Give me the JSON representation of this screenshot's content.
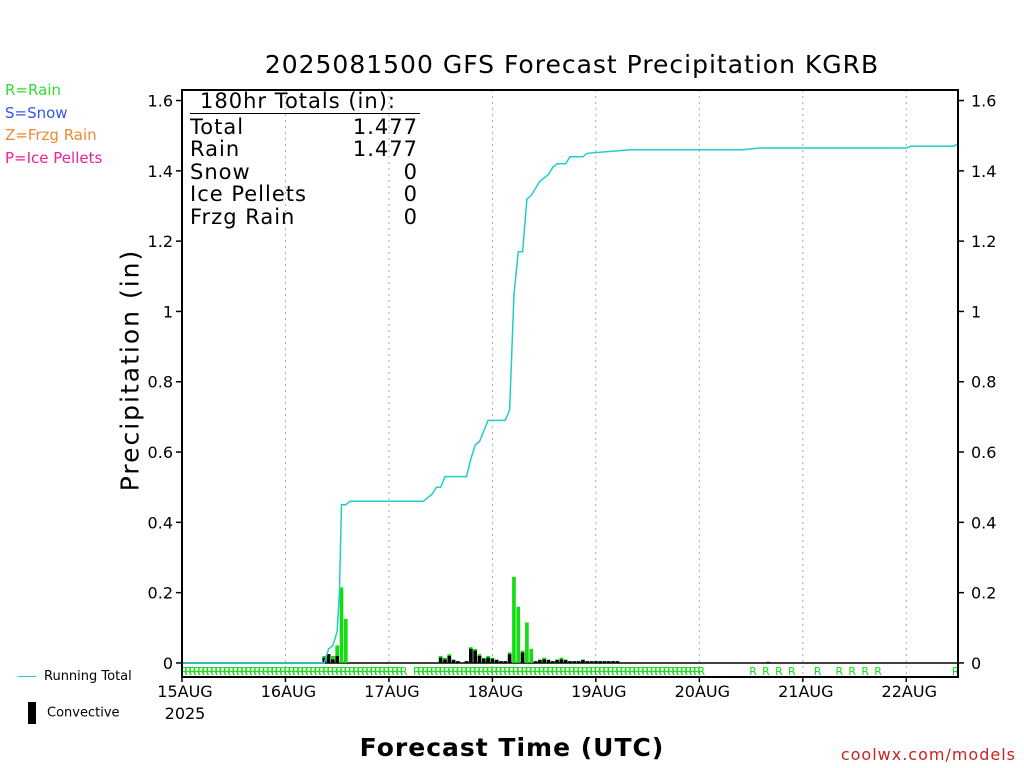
{
  "title": "2025081500 GFS Forecast Precipitation KGRB",
  "credit": "coolwx.com/models",
  "type_legend": [
    {
      "code": "R=Rain",
      "color": "#33dd33"
    },
    {
      "code": "S=Snow",
      "color": "#3355ee"
    },
    {
      "code": "Z=Frzg Rain",
      "color": "#ee8833"
    },
    {
      "code": "P=Ice Pellets",
      "color": "#ee2299"
    }
  ],
  "totals": {
    "header": "180hr Totals (in):",
    "rows": [
      {
        "label": "Total",
        "value": "1.477"
      },
      {
        "label": "Rain",
        "value": "1.477"
      },
      {
        "label": "Snow",
        "value": "0"
      },
      {
        "label": "Ice Pellets",
        "value": "0"
      },
      {
        "label": "Frzg Rain",
        "value": "0"
      }
    ]
  },
  "series_legend": {
    "running_total": "Running Total",
    "convective": "Convective"
  },
  "colors": {
    "running_total": "#22cccc",
    "rain_bar": "#11dd11",
    "convective_bar": "#000000",
    "grid": "#aaaaaa"
  },
  "chart_data": {
    "type": "bar",
    "title": "2025081500 GFS Forecast Precipitation KGRB",
    "xlabel": "Forecast Time (UTC)",
    "ylabel": "Precipitation (in)",
    "x_unit": "hours from 2025-08-15 00Z",
    "xlim": [
      0,
      180
    ],
    "ylim": [
      -0.04,
      1.63
    ],
    "yticks": [
      0,
      0.2,
      0.4,
      0.6,
      0.8,
      1,
      1.2,
      1.4,
      1.6
    ],
    "ytick_labels": [
      "0",
      "0.2",
      "0.4",
      "0.6",
      "0.8",
      "1",
      "1.2",
      "1.4",
      "1.6"
    ],
    "xticks": [
      {
        "x": 0,
        "label": "15AUG",
        "sublabel": "2025"
      },
      {
        "x": 24,
        "label": "16AUG"
      },
      {
        "x": 48,
        "label": "17AUG"
      },
      {
        "x": 72,
        "label": "18AUG"
      },
      {
        "x": 96,
        "label": "19AUG"
      },
      {
        "x": 120,
        "label": "20AUG"
      },
      {
        "x": 144,
        "label": "21AUG"
      },
      {
        "x": 168,
        "label": "22AUG"
      }
    ],
    "grid": "vertical dotted at day boundaries",
    "running_total": [
      [
        0,
        0
      ],
      [
        33,
        0
      ],
      [
        34,
        0.04
      ],
      [
        35,
        0.05
      ],
      [
        36,
        0.09
      ],
      [
        36.5,
        0.2
      ],
      [
        37,
        0.45
      ],
      [
        38,
        0.45
      ],
      [
        39,
        0.46
      ],
      [
        40,
        0.46
      ],
      [
        56,
        0.46
      ],
      [
        58,
        0.48
      ],
      [
        59,
        0.5
      ],
      [
        60,
        0.5
      ],
      [
        61,
        0.53
      ],
      [
        66,
        0.53
      ],
      [
        67,
        0.58
      ],
      [
        68,
        0.62
      ],
      [
        69,
        0.63
      ],
      [
        70,
        0.66
      ],
      [
        71,
        0.69
      ],
      [
        75,
        0.69
      ],
      [
        76,
        0.72
      ],
      [
        77,
        1.05
      ],
      [
        78,
        1.17
      ],
      [
        79,
        1.17
      ],
      [
        80,
        1.32
      ],
      [
        81,
        1.33
      ],
      [
        83,
        1.37
      ],
      [
        85,
        1.39
      ],
      [
        86,
        1.41
      ],
      [
        87,
        1.42
      ],
      [
        89,
        1.42
      ],
      [
        90,
        1.44
      ],
      [
        93,
        1.44
      ],
      [
        94,
        1.45
      ],
      [
        99,
        1.455
      ],
      [
        104,
        1.46
      ],
      [
        109,
        1.46
      ],
      [
        130,
        1.46
      ],
      [
        134,
        1.465
      ],
      [
        168,
        1.465
      ],
      [
        169,
        1.47
      ],
      [
        179,
        1.47
      ],
      [
        180,
        1.477
      ]
    ],
    "bar_series": [
      {
        "name": "Rain",
        "x": [
          33,
          34,
          35,
          36,
          37,
          38,
          60,
          61,
          62,
          63,
          64,
          66,
          67,
          68,
          69,
          70,
          71,
          72,
          73,
          74,
          75,
          76,
          77,
          78,
          79,
          80,
          81,
          82,
          83,
          84,
          85,
          86,
          87,
          88,
          89,
          90,
          91,
          92,
          93,
          94,
          95,
          96,
          97,
          98,
          99,
          100,
          101,
          136
        ],
        "values": [
          0.02,
          0.025,
          0.02,
          0.05,
          0.215,
          0.125,
          0.02,
          0.015,
          0.025,
          0.01,
          0.005,
          0.005,
          0.045,
          0.04,
          0.025,
          0.015,
          0.02,
          0.015,
          0.01,
          0.005,
          0.005,
          0.03,
          0.245,
          0.16,
          0.035,
          0.115,
          0.04,
          0.005,
          0.01,
          0.015,
          0.01,
          0.005,
          0.01,
          0.015,
          0.01,
          0.005,
          0.005,
          0.005,
          0.01,
          0.005,
          0.005,
          0.005,
          0.005,
          0.005,
          0.005,
          0.005,
          0.005,
          0.003
        ]
      },
      {
        "name": "Convective",
        "x": [
          33,
          34,
          35,
          36,
          37,
          38,
          60,
          61,
          62,
          63,
          64,
          66,
          67,
          68,
          69,
          70,
          71,
          72,
          73,
          74,
          75,
          76,
          77,
          78,
          79,
          80,
          81,
          82,
          83,
          84,
          85,
          86,
          87,
          88,
          89,
          90,
          91,
          92,
          93,
          94,
          95,
          96,
          97,
          98,
          99,
          100,
          101,
          136
        ],
        "values": [
          0.015,
          0.025,
          0.01,
          0.02,
          0.0,
          0.0,
          0.015,
          0.01,
          0.02,
          0.008,
          0.005,
          0.005,
          0.04,
          0.035,
          0.02,
          0.012,
          0.015,
          0.012,
          0.008,
          0.005,
          0.005,
          0.025,
          0.0,
          0.0,
          0.03,
          0.0,
          0.0,
          0.005,
          0.008,
          0.01,
          0.008,
          0.005,
          0.008,
          0.01,
          0.008,
          0.005,
          0.005,
          0.005,
          0.008,
          0.005,
          0.005,
          0.005,
          0.005,
          0.005,
          0.005,
          0.005,
          0.005,
          0.003
        ]
      }
    ],
    "type_markers": {
      "text": "R",
      "x": [
        0,
        1,
        2,
        3,
        4,
        5,
        6,
        7,
        8,
        9,
        10,
        11,
        12,
        13,
        14,
        15,
        16,
        17,
        18,
        19,
        20,
        21,
        22,
        23,
        24,
        25,
        26,
        27,
        28,
        29,
        30,
        31,
        32,
        33,
        34,
        35,
        36,
        37,
        38,
        39,
        40,
        41,
        42,
        43,
        44,
        45,
        46,
        47,
        48,
        49,
        50,
        51,
        54,
        55,
        56,
        57,
        58,
        59,
        60,
        61,
        62,
        63,
        64,
        65,
        66,
        67,
        68,
        69,
        70,
        71,
        72,
        73,
        74,
        75,
        76,
        77,
        78,
        79,
        80,
        81,
        82,
        83,
        84,
        85,
        86,
        87,
        88,
        89,
        90,
        91,
        92,
        93,
        94,
        95,
        96,
        97,
        98,
        99,
        100,
        101,
        102,
        103,
        104,
        105,
        106,
        107,
        108,
        109,
        110,
        111,
        112,
        113,
        114,
        115,
        116,
        117,
        118,
        119,
        120,
        132,
        135,
        138,
        141,
        147,
        152,
        155,
        158,
        161,
        179
      ]
    }
  }
}
